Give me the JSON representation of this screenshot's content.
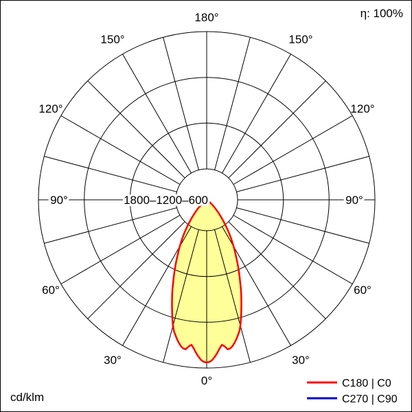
{
  "diagram": {
    "efficiency_label": "η: 100%",
    "efficiency_percent": 100,
    "unit_label": "cd/klm",
    "scale_label": "1800–1200–600",
    "angle_labels": [
      "180°",
      "150°",
      "120°",
      "90°",
      "60°",
      "30°",
      "0°"
    ]
  },
  "legend": {
    "items": [
      {
        "label": "C180 | C0",
        "color": "#ff0000"
      },
      {
        "label": "C270 | C90",
        "color": "#0000cc"
      }
    ]
  },
  "colors": {
    "curve_stroke": "#ff0000",
    "curve_fill": "#ffff99",
    "grid": "#000000",
    "background": "#ffffff",
    "text": "#000000"
  },
  "chart_data": {
    "type": "line",
    "polar": true,
    "title": "",
    "angle_unit": "degrees from nadir (0° at bottom, 180° at top)",
    "radial_unit": "cd/klm",
    "radial_ticks": [
      600,
      1200,
      1800
    ],
    "radial_max": 1800,
    "angle_tick_step_deg": 15,
    "angle_label_step_deg": 30,
    "angle_label_range": [
      0,
      180
    ],
    "grid": true,
    "legend_position": "bottom-right",
    "efficiency_percent": 100,
    "series": [
      {
        "name": "C180 | C0",
        "color": "#ff0000",
        "fill": "#ffff99",
        "symmetric_mirrored": true,
        "points": [
          [
            0,
            1740
          ],
          [
            1,
            1735
          ],
          [
            2,
            1715
          ],
          [
            3,
            1680
          ],
          [
            4,
            1640
          ],
          [
            5,
            1595
          ],
          [
            6,
            1560
          ],
          [
            7,
            1580
          ],
          [
            8,
            1615
          ],
          [
            9,
            1610
          ],
          [
            10,
            1590
          ],
          [
            11,
            1560
          ],
          [
            12,
            1525
          ],
          [
            13,
            1487
          ],
          [
            14,
            1448
          ],
          [
            15,
            1393
          ],
          [
            16,
            1330
          ],
          [
            17,
            1265
          ],
          [
            18,
            1200
          ],
          [
            19,
            1140
          ],
          [
            20,
            1080
          ],
          [
            21,
            1020
          ],
          [
            22,
            960
          ],
          [
            23,
            905
          ],
          [
            24,
            850
          ],
          [
            25,
            800
          ],
          [
            26,
            750
          ],
          [
            27,
            703
          ],
          [
            28,
            658
          ],
          [
            29,
            617
          ],
          [
            30,
            578
          ],
          [
            31,
            538
          ],
          [
            32,
            499
          ],
          [
            33,
            461
          ],
          [
            34,
            424
          ],
          [
            35,
            389
          ],
          [
            36,
            356
          ],
          [
            38,
            294
          ],
          [
            40,
            239
          ],
          [
            42,
            191
          ],
          [
            44,
            150
          ],
          [
            46,
            114
          ],
          [
            48,
            84
          ],
          [
            50,
            60
          ],
          [
            52,
            43
          ],
          [
            54,
            30
          ],
          [
            56,
            20
          ],
          [
            58,
            13
          ],
          [
            60,
            8
          ],
          [
            65,
            3
          ],
          [
            70,
            1
          ],
          [
            80,
            0
          ],
          [
            90,
            0
          ]
        ]
      },
      {
        "name": "C270 | C90",
        "color": "#0000cc",
        "visible_separately": false,
        "note": "curve coincides with C180 | C0 (hidden behind red curve)"
      }
    ]
  }
}
